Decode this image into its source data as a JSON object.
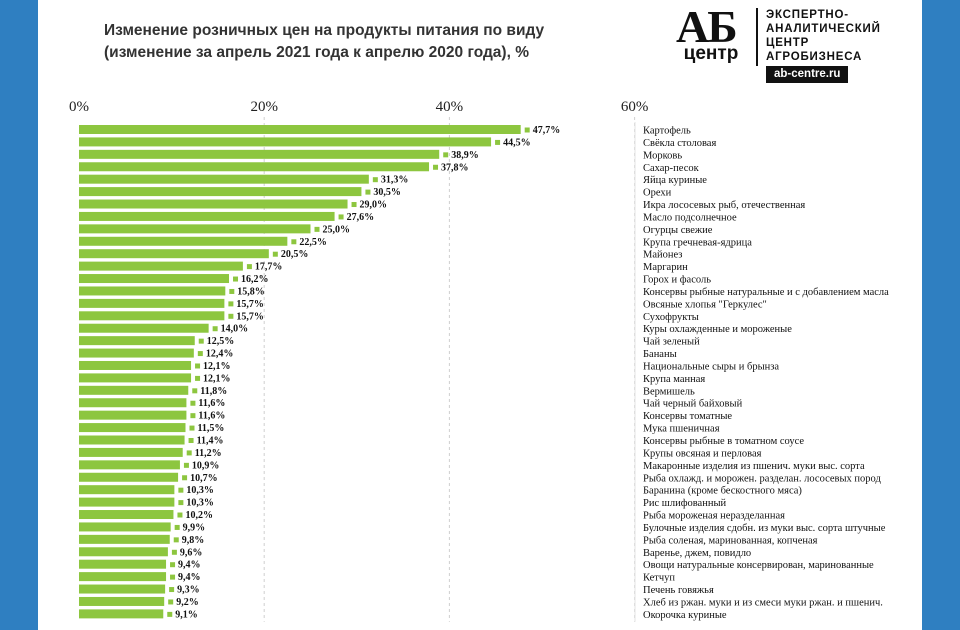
{
  "title": {
    "line1": "Изменение розничных цен на продукты питания по виду",
    "line2": "(изменение за апрель 2021 года к апрелю 2020 года), %"
  },
  "logo": {
    "ab": "АБ",
    "center": "центр",
    "line1": "ЭКСПЕРТНО-",
    "line2": "АНАЛИТИЧЕСКИЙ",
    "line3": "ЦЕНТР",
    "line4": "АГРОБИЗНЕСА",
    "site": "ab-centre.ru"
  },
  "colors": {
    "bar": "#8dc63f",
    "marker": "#8dc63f",
    "grid": "#cfcfcf",
    "frame": "#2f7fc1"
  },
  "chart_data": {
    "type": "bar",
    "orientation": "horizontal",
    "xlim": [
      0,
      60
    ],
    "ticks": [
      "0%",
      "20%",
      "40%",
      "60%"
    ],
    "tick_values": [
      0,
      20,
      40,
      60
    ],
    "grid": true,
    "categories": [
      "Картофель",
      "Свёкла столовая",
      "Морковь",
      "Сахар-песок",
      "Яйца куриные",
      "Орехи",
      "Икра лососевых рыб, отечественная",
      "Масло подсолнечное",
      "Огурцы свежие",
      "Крупа гречневая-ядрица",
      "Майонез",
      "Маргарин",
      "Горох и фасоль",
      "Консервы рыбные натуральные и с добавлением масла",
      "Овсяные хлопья \"Геркулес\"",
      "Сухофрукты",
      "Куры охлажденные и мороженые",
      "Чай зеленый",
      "Бананы",
      "Национальные сыры и брынза",
      "Крупа манная",
      "Вермишель",
      "Чай черный байховый",
      "Консервы томатные",
      "Мука пшеничная",
      "Консервы рыбные в томатном соусе",
      "Крупы овсяная и перловая",
      "Макаронные изделия из пшенич. муки выс. сорта",
      "Рыба охлажд. и морожен. разделан. лососевых пород",
      "Баранина (кроме бескостного мяса)",
      "Рис шлифованный",
      "Рыба мороженая неразделанная",
      "Булочные изделия сдобн. из муки выс. сорта штучные",
      "Рыба соленая, маринованная, копченая",
      "Варенье, джем, повидло",
      "Овощи натуральные консервирован, маринованные",
      "Кетчуп",
      "Печень говяжья",
      "Хлеб из ржан. муки и из смеси муки ржан. и пшенич.",
      "Окорочка куриные"
    ],
    "values": [
      47.7,
      44.5,
      38.9,
      37.8,
      31.3,
      30.5,
      29.0,
      27.6,
      25.0,
      22.5,
      20.5,
      17.7,
      16.2,
      15.8,
      15.7,
      15.7,
      14.0,
      12.5,
      12.4,
      12.1,
      12.1,
      11.8,
      11.6,
      11.6,
      11.5,
      11.4,
      11.2,
      10.9,
      10.7,
      10.3,
      10.3,
      10.2,
      9.9,
      9.8,
      9.6,
      9.4,
      9.4,
      9.3,
      9.2,
      9.1
    ],
    "labels": [
      "47,7%",
      "44,5%",
      "38,9%",
      "37,8%",
      "31,3%",
      "30,5%",
      "29,0%",
      "27,6%",
      "25,0%",
      "22,5%",
      "20,5%",
      "17,7%",
      "16,2%",
      "15,8%",
      "15,7%",
      "15,7%",
      "14,0%",
      "12,5%",
      "12,4%",
      "12,1%",
      "12,1%",
      "11,8%",
      "11,6%",
      "11,6%",
      "11,5%",
      "11,4%",
      "11,2%",
      "10,9%",
      "10,7%",
      "10,3%",
      "10,3%",
      "10,2%",
      "9,9%",
      "9,8%",
      "9,6%",
      "9,4%",
      "9,4%",
      "9,3%",
      "9,2%",
      "9,1%"
    ]
  }
}
